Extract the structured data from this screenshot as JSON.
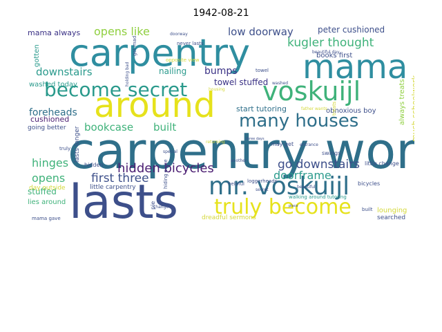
{
  "title": "1942-08-21",
  "colors": {
    "navy": "#3d4f8a",
    "indigo": "#3a3185",
    "purple": "#4b1e72",
    "teal": "#2f6f8a",
    "cyan": "#2f8ea0",
    "green": "#3fb27a",
    "lime": "#8fcf3f",
    "yellow": "#e6e21c",
    "gold": "#d4d83a",
    "sea": "#2a9a8c"
  },
  "words": [
    {
      "text": "carpentry work",
      "color": "teal"
    },
    {
      "text": "carpentry",
      "color": "cyan"
    },
    {
      "text": "lasts",
      "color": "navy"
    },
    {
      "text": "mama",
      "color": "cyan"
    },
    {
      "text": "around",
      "color": "yellow"
    },
    {
      "text": "become secret",
      "color": "sea"
    },
    {
      "text": "voskuijl",
      "color": "green"
    },
    {
      "text": "mr. voskuijl",
      "color": "teal"
    },
    {
      "text": "truly become",
      "color": "yellow"
    },
    {
      "text": "many houses",
      "color": "teal"
    },
    {
      "text": "hidden bicycles",
      "color": "purple"
    },
    {
      "text": "kugler thought",
      "color": "green"
    },
    {
      "text": "opens like",
      "color": "lime"
    },
    {
      "text": "low doorway",
      "color": "navy"
    },
    {
      "text": "downstairs",
      "color": "sea"
    },
    {
      "text": "first three",
      "color": "navy"
    },
    {
      "text": "go downstairs",
      "color": "navy"
    },
    {
      "text": "doorframe",
      "color": "sea"
    },
    {
      "text": "bookcase",
      "color": "green"
    },
    {
      "text": "built",
      "color": "green"
    },
    {
      "text": "hinges",
      "color": "green"
    },
    {
      "text": "opens",
      "color": "green"
    },
    {
      "text": "foreheads",
      "color": "teal"
    },
    {
      "text": "bumps",
      "color": "indigo"
    },
    {
      "text": "nailing",
      "color": "sea"
    },
    {
      "text": "towel stuffed",
      "color": "indigo"
    },
    {
      "text": "peter cushioned",
      "color": "navy"
    },
    {
      "text": "mama always",
      "color": "indigo"
    },
    {
      "text": "cushioned",
      "color": "purple"
    },
    {
      "text": "washed today",
      "color": "sea"
    },
    {
      "text": "going better",
      "color": "navy"
    },
    {
      "text": "start tutoring",
      "color": "teal"
    },
    {
      "text": "books first",
      "color": "navy"
    },
    {
      "text": "obnoxious boy",
      "color": "navy"
    },
    {
      "text": "stuffed",
      "color": "green"
    },
    {
      "text": "lies around",
      "color": "green"
    },
    {
      "text": "little carpentry",
      "color": "navy"
    },
    {
      "text": "always treats",
      "color": "lime"
    },
    {
      "text": "much schoolwork",
      "color": "gold"
    },
    {
      "text": "dreadful sermons",
      "color": "gold"
    },
    {
      "text": "mama gave",
      "color": "navy"
    },
    {
      "text": "lounging",
      "color": "gold"
    },
    {
      "text": "searched",
      "color": "navy"
    },
    {
      "text": "walking around tutoring",
      "color": "sea"
    },
    {
      "text": "day outside",
      "color": "gold"
    },
    {
      "text": "may get",
      "color": "navy"
    },
    {
      "text": "swings",
      "color": "navy"
    },
    {
      "text": "hidden",
      "color": "navy"
    },
    {
      "text": "little change",
      "color": "navy"
    },
    {
      "text": "never lasts",
      "color": "navy"
    },
    {
      "text": "opposite view",
      "color": "gold"
    },
    {
      "text": "beautiful day",
      "color": "navy"
    },
    {
      "text": "loggerheads",
      "color": "navy"
    },
    {
      "text": "helpful",
      "color": "navy"
    },
    {
      "text": "secret",
      "color": "navy"
    },
    {
      "text": "treats",
      "color": "gold"
    },
    {
      "text": "gotten",
      "color": "sea"
    },
    {
      "text": "lasts longer",
      "color": "navy"
    },
    {
      "text": "hiding place",
      "color": "navy"
    },
    {
      "text": "towel",
      "color": "navy"
    },
    {
      "text": "entrance",
      "color": "navy"
    },
    {
      "text": "bicycles",
      "color": "navy"
    },
    {
      "text": "washed",
      "color": "navy"
    },
    {
      "text": "pie",
      "color": "navy"
    },
    {
      "text": "truly",
      "color": "navy"
    },
    {
      "text": "built",
      "color": "navy"
    },
    {
      "text": "get mad",
      "color": "navy"
    },
    {
      "text": "doorway",
      "color": "navy"
    },
    {
      "text": "beautiful",
      "color": "navy"
    },
    {
      "text": "special",
      "color": "navy"
    },
    {
      "text": "returning",
      "color": "gold"
    },
    {
      "text": "father wants",
      "color": "gold"
    },
    {
      "text": "housing",
      "color": "gold"
    },
    {
      "text": "holding bad",
      "color": "navy"
    },
    {
      "text": "change",
      "color": "navy"
    },
    {
      "text": "another",
      "color": "navy"
    },
    {
      "text": "three days",
      "color": "navy"
    },
    {
      "text": "place",
      "color": "navy"
    }
  ]
}
